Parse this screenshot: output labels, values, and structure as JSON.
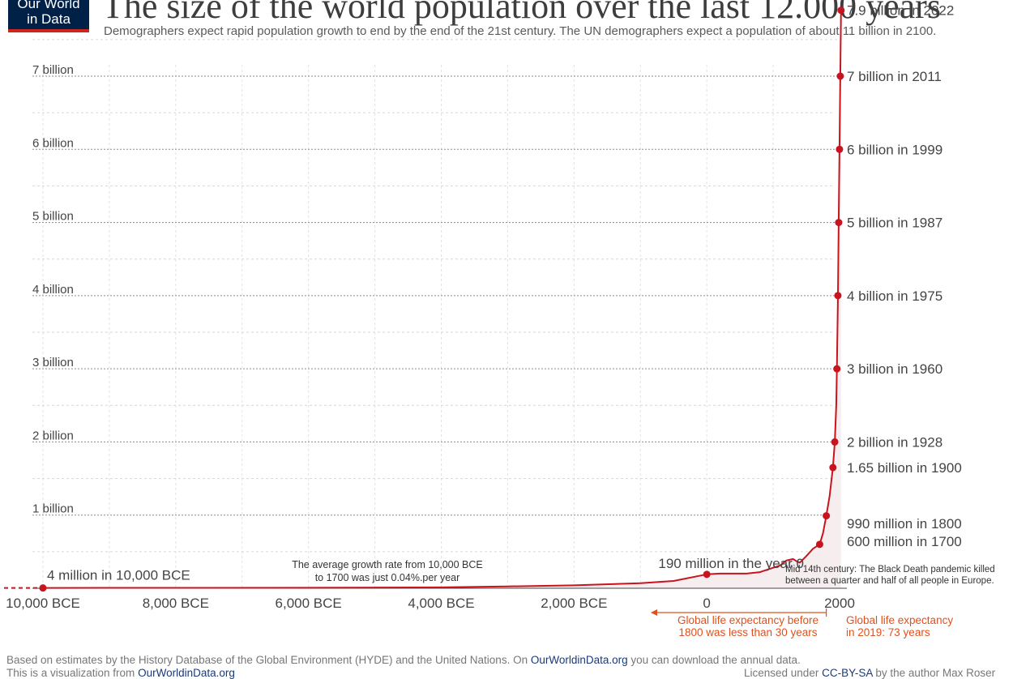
{
  "logo": {
    "line1": "Our World",
    "line2": "in Data"
  },
  "title": "The size of the world population over the last 12.000 years",
  "subtitle": "Demographers expect rapid population growth to end by the end of the 21st century. The UN demographers expect a population of about 11 billion in 2100.",
  "colors": {
    "line": "#c8141e",
    "annotation": "#e0501c",
    "grid": "#d0d0d0",
    "area": "#f6eeee",
    "logo_bg": "#002147",
    "logo_bar": "#ce261e"
  },
  "chart_data": {
    "type": "line",
    "title": "The size of the world population over the last 12.000 years",
    "xlabel": "",
    "ylabel": "",
    "xlim": [
      -10000,
      2100
    ],
    "ylim": [
      0,
      7.9
    ],
    "x_ticks": [
      -10000,
      -8000,
      -6000,
      -4000,
      -2000,
      0,
      2000
    ],
    "x_tick_labels": [
      "10,000 BCE",
      "8,000 BCE",
      "6,000 BCE",
      "4,000 BCE",
      "2,000 BCE",
      "0",
      "2000"
    ],
    "y_ticks": [
      1,
      2,
      3,
      4,
      5,
      6,
      7
    ],
    "y_tick_labels": [
      "1 billion",
      "2 billion",
      "3 billion",
      "4 billion",
      "5 billion",
      "6 billion",
      "7 billion"
    ],
    "grid": true,
    "series": [
      {
        "units": "billion",
        "x": [
          -10000,
          -8000,
          -6000,
          -4000,
          -3000,
          -2000,
          -1000,
          -500,
          0,
          200,
          400,
          600,
          800,
          1000,
          1100,
          1200,
          1300,
          1350,
          1400,
          1500,
          1600,
          1700,
          1750,
          1800,
          1850,
          1900,
          1928,
          1950,
          1960,
          1975,
          1987,
          1999,
          2011,
          2022
        ],
        "y": [
          0.004,
          0.005,
          0.007,
          0.012,
          0.025,
          0.04,
          0.07,
          0.1,
          0.19,
          0.2,
          0.2,
          0.2,
          0.22,
          0.28,
          0.31,
          0.38,
          0.4,
          0.37,
          0.35,
          0.44,
          0.54,
          0.6,
          0.75,
          0.99,
          1.26,
          1.65,
          2.0,
          2.5,
          3.0,
          4.0,
          5.0,
          6.0,
          7.0,
          7.9
        ]
      }
    ],
    "labeled_points": [
      {
        "x": -10000,
        "y": 0.004,
        "label": "4 million in 10,000 BCE"
      },
      {
        "x": 0,
        "y": 0.19,
        "label": "190 million in the year 0"
      },
      {
        "x": 1700,
        "y": 0.6,
        "label": "600 million in 1700"
      },
      {
        "x": 1800,
        "y": 0.99,
        "label": "990 million in 1800"
      },
      {
        "x": 1900,
        "y": 1.65,
        "label": "1.65 billion in 1900"
      },
      {
        "x": 1928,
        "y": 2.0,
        "label": "2 billion in 1928"
      },
      {
        "x": 1960,
        "y": 3.0,
        "label": "3 billion in 1960"
      },
      {
        "x": 1975,
        "y": 4.0,
        "label": "4 billion in 1975"
      },
      {
        "x": 1987,
        "y": 5.0,
        "label": "5 billion in 1987"
      },
      {
        "x": 1999,
        "y": 6.0,
        "label": "6 billion in 1999"
      },
      {
        "x": 2011,
        "y": 7.0,
        "label": "7 billion in 2011"
      },
      {
        "x": 2022,
        "y": 7.9,
        "label": "7.9 billion in 2022"
      }
    ],
    "annotations": {
      "growth_rate": [
        "The average growth rate from 10,000 BCE",
        "to 1700 was just  0.04%.per year"
      ],
      "black_death": [
        "Mid 14th century: The Black Death pandemic killed",
        "between a quarter and half of all people in Europe."
      ],
      "life_exp_before": [
        "Global life expectancy before",
        "1800 was less than 30 years"
      ],
      "life_exp_2019": [
        "Global life expectancy",
        "in 2019: 73 years"
      ]
    }
  },
  "footer": {
    "line1_pre": "Based on estimates by the History Database of the Global Environment (HYDE) and the United Nations. On ",
    "line1_link": "OurWorldinData.org",
    "line1_post": " you can download the annual data.",
    "line2_pre": "This is a visualization from ",
    "line2_link": "OurWorldinData.org",
    "license_pre": "Licensed under ",
    "license_link": "CC-BY-SA",
    "license_post": " by the author Max Roser"
  }
}
